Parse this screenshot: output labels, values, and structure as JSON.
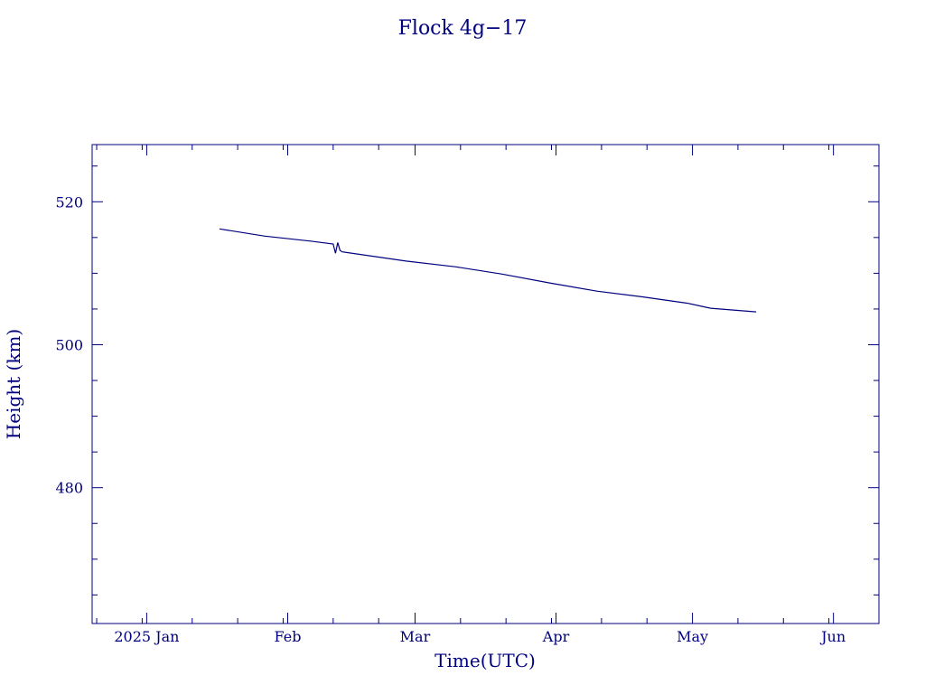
{
  "chart_data": {
    "type": "line",
    "title": "Flock 4g−17",
    "xlabel": "Time(UTC)",
    "ylabel": "Height (km)",
    "xlim": [
      "2024-12-20",
      "2025-06-11"
    ],
    "ylim": [
      461,
      528
    ],
    "x_ticks": [
      {
        "date": "2025-01-01",
        "label": "2025 Jan"
      },
      {
        "date": "2025-02-01",
        "label": "Feb"
      },
      {
        "date": "2025-03-01",
        "label": "Mar"
      },
      {
        "date": "2025-04-01",
        "label": "Apr"
      },
      {
        "date": "2025-05-01",
        "label": "May"
      },
      {
        "date": "2025-06-01",
        "label": "Jun"
      }
    ],
    "y_ticks": [
      {
        "value": 480,
        "label": "480"
      },
      {
        "value": 500,
        "label": "500"
      },
      {
        "value": 520,
        "label": "520"
      }
    ],
    "y_minor_step": 5,
    "x_minor_days": 10,
    "grid": false,
    "color": "#00007f",
    "series": [
      {
        "x": [
          "2025-01-17",
          "2025-01-27",
          "2025-02-06",
          "2025-02-11",
          "2025-02-11T12:00",
          "2025-02-12",
          "2025-02-12T12:00",
          "2025-02-13",
          "2025-02-27",
          "2025-03-10",
          "2025-03-20",
          "2025-03-31",
          "2025-04-10",
          "2025-04-20",
          "2025-04-30",
          "2025-05-05",
          "2025-05-15"
        ],
        "y": [
          516.2,
          515.2,
          514.5,
          514.1,
          512.8,
          514.3,
          513.2,
          513.0,
          511.7,
          510.9,
          509.9,
          508.6,
          507.5,
          506.7,
          505.8,
          505.1,
          504.6
        ]
      }
    ]
  }
}
